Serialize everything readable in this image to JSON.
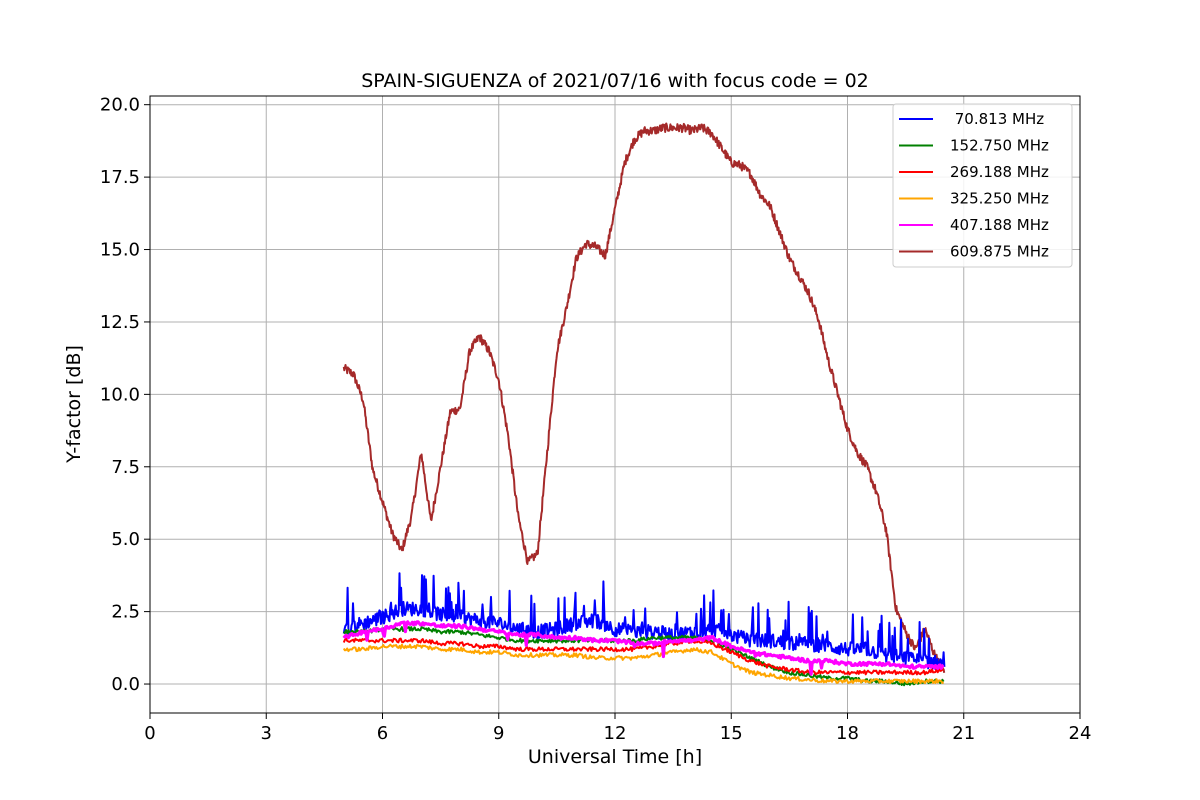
{
  "chart_data": {
    "type": "line",
    "title": "SPAIN-SIGUENZA of 2021/07/16 with focus code = 02",
    "xlabel": "Universal Time [h]",
    "ylabel": "Y-factor [dB]",
    "xlim": [
      0,
      24
    ],
    "ylim": [
      -1.0,
      20.3
    ],
    "xticks": [
      0,
      3,
      6,
      9,
      12,
      15,
      18,
      21,
      24
    ],
    "xtick_labels": [
      "0",
      "3",
      "6",
      "9",
      "12",
      "15",
      "18",
      "21",
      "24"
    ],
    "yticks": [
      0.0,
      2.5,
      5.0,
      7.5,
      10.0,
      12.5,
      15.0,
      17.5,
      20.0
    ],
    "ytick_labels": [
      "0.0",
      "2.5",
      "5.0",
      "7.5",
      "10.0",
      "12.5",
      "15.0",
      "17.5",
      "20.0"
    ],
    "grid": true,
    "legend_position": "top-right",
    "series": [
      {
        "name": " 70.813 MHz",
        "color": "#0000ff",
        "x": [
          5.0,
          5.5,
          6.0,
          6.5,
          7.0,
          7.5,
          8.0,
          8.5,
          9.0,
          9.5,
          10.0,
          10.5,
          11.0,
          11.5,
          12.0,
          12.5,
          13.0,
          13.5,
          14.0,
          14.5,
          15.0,
          15.5,
          16.0,
          16.5,
          17.0,
          17.5,
          18.0,
          18.5,
          19.0,
          19.5,
          20.0,
          20.5
        ],
        "values": [
          1.9,
          2.1,
          2.3,
          2.6,
          2.6,
          2.4,
          2.3,
          2.2,
          2.1,
          1.9,
          1.8,
          1.9,
          2.1,
          2.2,
          1.9,
          1.8,
          1.8,
          1.7,
          1.8,
          1.9,
          1.7,
          1.5,
          1.5,
          1.4,
          1.4,
          1.3,
          1.2,
          1.2,
          1.0,
          0.9,
          0.8,
          0.7
        ]
      },
      {
        "name": "152.750 MHz",
        "color": "#008000",
        "x": [
          5.0,
          5.5,
          6.0,
          6.5,
          7.0,
          7.5,
          8.0,
          8.5,
          9.0,
          9.5,
          10.0,
          10.5,
          11.0,
          11.5,
          12.0,
          12.5,
          13.0,
          13.5,
          14.0,
          14.5,
          15.0,
          15.5,
          16.0,
          16.5,
          17.0,
          17.5,
          18.0,
          18.5,
          19.0,
          19.5,
          20.0,
          20.5
        ],
        "values": [
          1.8,
          1.8,
          1.9,
          1.9,
          1.9,
          1.8,
          1.8,
          1.7,
          1.6,
          1.5,
          1.5,
          1.5,
          1.5,
          1.5,
          1.5,
          1.5,
          1.6,
          1.6,
          1.6,
          1.5,
          1.2,
          0.9,
          0.6,
          0.4,
          0.3,
          0.2,
          0.2,
          0.1,
          0.1,
          0.0,
          0.1,
          0.1
        ]
      },
      {
        "name": "269.188 MHz",
        "color": "#ff0000",
        "x": [
          5.0,
          5.5,
          6.0,
          6.5,
          7.0,
          7.5,
          8.0,
          8.5,
          9.0,
          9.5,
          10.0,
          10.5,
          11.0,
          11.5,
          12.0,
          12.5,
          13.0,
          13.5,
          14.0,
          14.5,
          15.0,
          15.5,
          16.0,
          16.5,
          17.0,
          17.5,
          18.0,
          18.5,
          19.0,
          19.5,
          20.0,
          20.5
        ],
        "values": [
          1.5,
          1.5,
          1.5,
          1.5,
          1.5,
          1.4,
          1.4,
          1.3,
          1.3,
          1.2,
          1.2,
          1.2,
          1.2,
          1.2,
          1.2,
          1.2,
          1.3,
          1.4,
          1.5,
          1.4,
          1.1,
          0.8,
          0.6,
          0.5,
          0.4,
          0.4,
          0.4,
          0.4,
          0.4,
          0.4,
          0.4,
          0.5
        ]
      },
      {
        "name": "325.250 MHz",
        "color": "#ffa500",
        "x": [
          5.0,
          5.5,
          6.0,
          6.5,
          7.0,
          7.5,
          8.0,
          8.5,
          9.0,
          9.5,
          10.0,
          10.5,
          11.0,
          11.5,
          12.0,
          12.5,
          13.0,
          13.5,
          14.0,
          14.5,
          15.0,
          15.5,
          16.0,
          16.5,
          17.0,
          17.5,
          18.0,
          18.5,
          19.0,
          19.5,
          20.0,
          20.5
        ],
        "values": [
          1.2,
          1.2,
          1.3,
          1.3,
          1.3,
          1.2,
          1.2,
          1.1,
          1.1,
          1.0,
          1.0,
          1.0,
          1.0,
          0.9,
          0.9,
          0.9,
          1.0,
          1.1,
          1.2,
          1.1,
          0.7,
          0.4,
          0.3,
          0.2,
          0.15,
          0.1,
          0.1,
          0.1,
          0.1,
          0.1,
          0.1,
          0.1
        ]
      },
      {
        "name": "407.188 MHz",
        "color": "#ff00ff",
        "x": [
          5.0,
          5.5,
          6.0,
          6.5,
          7.0,
          7.5,
          8.0,
          8.5,
          9.0,
          9.5,
          10.0,
          10.5,
          11.0,
          11.5,
          12.0,
          12.5,
          13.0,
          13.5,
          14.0,
          14.5,
          15.0,
          15.5,
          16.0,
          16.5,
          17.0,
          17.5,
          18.0,
          18.5,
          19.0,
          19.5,
          20.0,
          20.5
        ],
        "values": [
          1.6,
          1.8,
          1.9,
          2.1,
          2.1,
          2.0,
          2.0,
          1.9,
          1.8,
          1.7,
          1.7,
          1.6,
          1.6,
          1.5,
          1.5,
          1.4,
          1.4,
          1.5,
          1.5,
          1.6,
          1.3,
          1.1,
          1.0,
          0.9,
          0.8,
          0.8,
          0.7,
          0.7,
          0.7,
          0.6,
          0.6,
          0.6
        ]
      },
      {
        "name": "609.875 MHz",
        "color": "#a52a2a",
        "x": [
          5.0,
          5.25,
          5.5,
          5.75,
          6.0,
          6.25,
          6.5,
          6.75,
          7.0,
          7.25,
          7.5,
          7.75,
          8.0,
          8.25,
          8.5,
          8.75,
          9.0,
          9.25,
          9.5,
          9.75,
          10.0,
          10.25,
          10.5,
          10.75,
          11.0,
          11.25,
          11.5,
          11.75,
          12.0,
          12.25,
          12.5,
          12.75,
          13.0,
          13.25,
          13.5,
          13.75,
          14.0,
          14.25,
          14.5,
          14.75,
          15.0,
          15.25,
          15.5,
          15.75,
          16.0,
          16.25,
          16.5,
          16.75,
          17.0,
          17.25,
          17.5,
          17.75,
          18.0,
          18.25,
          18.5,
          18.75,
          19.0,
          19.25,
          19.5,
          19.75,
          20.0,
          20.25,
          20.5
        ],
        "values": [
          10.9,
          10.7,
          9.8,
          7.4,
          6.3,
          5.2,
          4.6,
          5.8,
          8.0,
          5.6,
          7.5,
          9.4,
          9.5,
          11.5,
          12.0,
          11.5,
          10.5,
          8.5,
          5.8,
          4.2,
          4.5,
          8.0,
          11.5,
          13.0,
          14.7,
          15.2,
          15.1,
          14.8,
          16.4,
          18.0,
          18.8,
          19.1,
          19.1,
          19.2,
          19.2,
          19.2,
          19.1,
          19.2,
          19.0,
          18.5,
          18.0,
          17.9,
          17.6,
          16.9,
          16.5,
          15.6,
          14.7,
          14.1,
          13.5,
          12.6,
          11.2,
          10.0,
          8.8,
          8.0,
          7.5,
          6.6,
          5.3,
          2.6,
          1.8,
          1.2,
          1.9,
          1.0,
          0.4
        ]
      }
    ]
  }
}
